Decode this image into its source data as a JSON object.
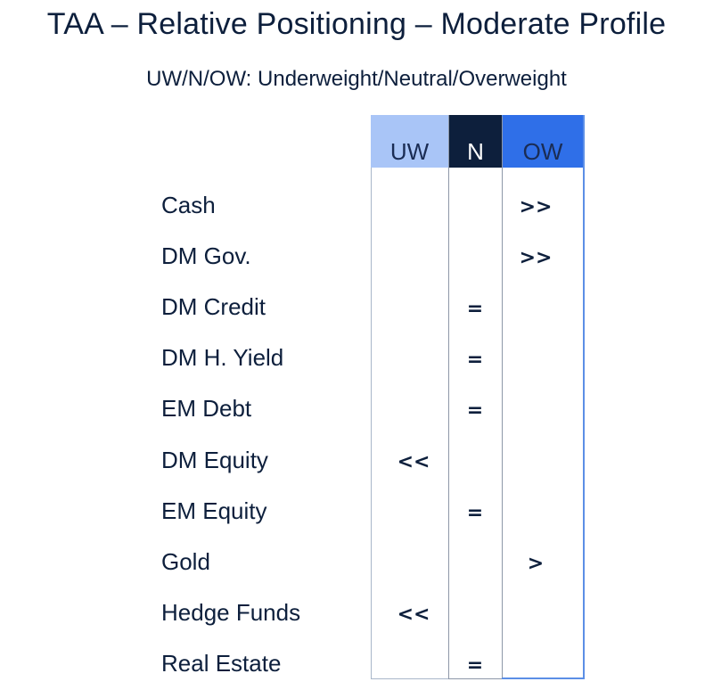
{
  "title": "TAA – Relative Positioning – Moderate Profile",
  "subtitle": "UW/N/OW: Underweight/Neutral/Overweight",
  "columns": {
    "uw": "UW",
    "n": "N",
    "ow": "OW"
  },
  "colors": {
    "uw_header": "#a9c5f7",
    "n_header": "#0d1f3c",
    "ow_header": "#2f6fe8",
    "text": "#0d1f3c"
  },
  "rows": [
    {
      "label": "Cash",
      "position": "OW",
      "mark": ">>"
    },
    {
      "label": "DM Gov.",
      "position": "OW",
      "mark": ">>"
    },
    {
      "label": "DM Credit",
      "position": "N",
      "mark": "="
    },
    {
      "label": "DM H. Yield",
      "position": "N",
      "mark": "="
    },
    {
      "label": "EM Debt",
      "position": "N",
      "mark": "="
    },
    {
      "label": "DM Equity",
      "position": "UW",
      "mark": "<<"
    },
    {
      "label": "EM Equity",
      "position": "N",
      "mark": "="
    },
    {
      "label": "Gold",
      "position": "OW",
      "mark": ">"
    },
    {
      "label": "Hedge Funds",
      "position": "UW",
      "mark": "<<"
    },
    {
      "label": "Real Estate",
      "position": "N",
      "mark": "="
    }
  ]
}
